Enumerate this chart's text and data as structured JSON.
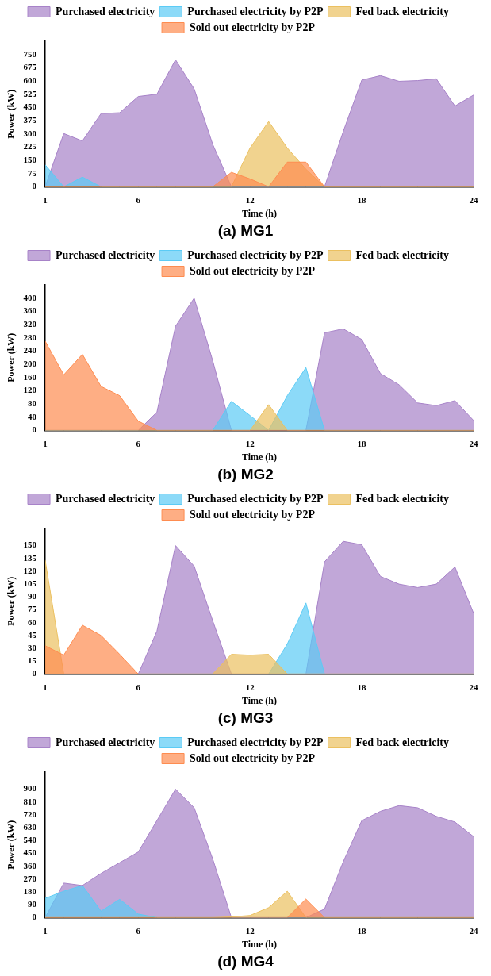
{
  "chart_data": [
    {
      "type": "area",
      "title": "(a) MG1",
      "xlabel": "Time (h)",
      "ylabel": "Power (kW)",
      "x": [
        1,
        2,
        3,
        4,
        5,
        6,
        7,
        8,
        9,
        10,
        11,
        12,
        13,
        14,
        15,
        16,
        17,
        18,
        19,
        20,
        21,
        22,
        23,
        24
      ],
      "xlim": [
        1,
        24
      ],
      "xticks": [
        1,
        6,
        12,
        18,
        24
      ],
      "ylim": [
        0,
        825
      ],
      "yticks": [
        0,
        75,
        150,
        225,
        300,
        375,
        450,
        525,
        600,
        675,
        750
      ],
      "grid": false,
      "legend": "top",
      "marker": "none",
      "series": [
        {
          "name": "Purchased electricity",
          "color": "#a782c8",
          "values": [
            0,
            302,
            260,
            415,
            420,
            512,
            525,
            720,
            555,
            240,
            0,
            0,
            0,
            0,
            0,
            0,
            312,
            605,
            630,
            598,
            602,
            612,
            458,
            520
          ]
        },
        {
          "name": "Purchased electricity by P2P",
          "color": "#5bcbf5",
          "values": [
            125,
            0,
            55,
            0,
            0,
            0,
            0,
            0,
            0,
            0,
            0,
            0,
            0,
            0,
            0,
            0,
            0,
            0,
            0,
            0,
            0,
            0,
            0,
            0
          ]
        },
        {
          "name": "Fed back electricity",
          "color": "#ebc060",
          "values": [
            0,
            0,
            0,
            0,
            0,
            0,
            0,
            0,
            0,
            0,
            0,
            220,
            370,
            220,
            100,
            0,
            0,
            0,
            0,
            0,
            0,
            0,
            0,
            0
          ]
        },
        {
          "name": "Sold out electricity by P2P",
          "color": "#fe8c50",
          "values": [
            0,
            0,
            0,
            0,
            0,
            0,
            0,
            0,
            0,
            0,
            82,
            45,
            0,
            140,
            140,
            0,
            0,
            0,
            0,
            0,
            0,
            0,
            0,
            0
          ]
        }
      ]
    },
    {
      "type": "area",
      "title": "(b) MG2",
      "xlabel": "Time (h)",
      "ylabel": "Power (kW)",
      "x": [
        1,
        2,
        3,
        4,
        5,
        6,
        7,
        8,
        9,
        10,
        11,
        12,
        13,
        14,
        15,
        16,
        17,
        18,
        19,
        20,
        21,
        22,
        23,
        24
      ],
      "xlim": [
        1,
        24
      ],
      "xticks": [
        1,
        6,
        12,
        18,
        24
      ],
      "ylim": [
        0,
        440
      ],
      "yticks": [
        0,
        40,
        80,
        120,
        160,
        200,
        240,
        280,
        320,
        360,
        400
      ],
      "grid": false,
      "legend": "top",
      "marker": "none",
      "series": [
        {
          "name": "Purchased electricity",
          "color": "#a782c8",
          "values": [
            0,
            0,
            0,
            0,
            0,
            0,
            55,
            315,
            400,
            210,
            0,
            0,
            0,
            0,
            0,
            295,
            307,
            275,
            172,
            138,
            83,
            75,
            90,
            30
          ]
        },
        {
          "name": "Purchased electricity by P2P",
          "color": "#5bcbf5",
          "values": [
            0,
            0,
            0,
            0,
            0,
            0,
            0,
            0,
            0,
            0,
            88,
            45,
            0,
            105,
            190,
            0,
            0,
            0,
            0,
            0,
            0,
            0,
            0,
            0
          ]
        },
        {
          "name": "Fed back electricity",
          "color": "#ebc060",
          "values": [
            0,
            0,
            0,
            0,
            0,
            0,
            0,
            0,
            0,
            0,
            0,
            0,
            78,
            0,
            0,
            0,
            0,
            0,
            0,
            0,
            0,
            0,
            0,
            0
          ]
        },
        {
          "name": "Sold out electricity by P2P",
          "color": "#fe8c50",
          "values": [
            270,
            168,
            230,
            133,
            105,
            28,
            0,
            0,
            0,
            0,
            0,
            0,
            0,
            0,
            0,
            0,
            0,
            0,
            0,
            0,
            0,
            0,
            0,
            0
          ]
        }
      ]
    },
    {
      "type": "area",
      "title": "(c) MG3",
      "xlabel": "Time (h)",
      "ylabel": "Power (kW)",
      "x": [
        1,
        2,
        3,
        4,
        5,
        6,
        7,
        8,
        9,
        10,
        11,
        12,
        13,
        14,
        15,
        16,
        17,
        18,
        19,
        20,
        21,
        22,
        23,
        24
      ],
      "xlim": [
        1,
        24
      ],
      "xticks": [
        1,
        6,
        12,
        18,
        24
      ],
      "ylim": [
        0,
        170
      ],
      "yticks": [
        0,
        15,
        30,
        45,
        60,
        75,
        90,
        105,
        120,
        135,
        150
      ],
      "grid": false,
      "legend": "top",
      "marker": "none",
      "series": [
        {
          "name": "Purchased electricity",
          "color": "#a782c8",
          "values": [
            0,
            0,
            0,
            0,
            0,
            0,
            50,
            150,
            126,
            62,
            0,
            0,
            0,
            0,
            0,
            131,
            155,
            151,
            114,
            105,
            101,
            105,
            125,
            71
          ]
        },
        {
          "name": "Purchased electricity by P2P",
          "color": "#5bcbf5",
          "values": [
            0,
            0,
            0,
            0,
            0,
            0,
            0,
            0,
            0,
            0,
            0,
            0,
            0,
            35,
            83,
            0,
            0,
            0,
            0,
            0,
            0,
            0,
            0,
            0
          ]
        },
        {
          "name": "Fed back electricity",
          "color": "#ebc060",
          "values": [
            133,
            0,
            0,
            0,
            0,
            0,
            0,
            0,
            0,
            0,
            23,
            22,
            23,
            0,
            0,
            0,
            0,
            0,
            0,
            0,
            0,
            0,
            0,
            0
          ]
        },
        {
          "name": "Sold out electricity by P2P",
          "color": "#fe8c50",
          "values": [
            33,
            22,
            57,
            45,
            23,
            0,
            0,
            0,
            0,
            0,
            0,
            0,
            0,
            0,
            0,
            0,
            0,
            0,
            0,
            0,
            0,
            0,
            0,
            0
          ]
        }
      ]
    },
    {
      "type": "area",
      "title": "(d) MG4",
      "xlabel": "Time (h)",
      "ylabel": "Power (kW)",
      "x": [
        1,
        2,
        3,
        4,
        5,
        6,
        7,
        8,
        9,
        10,
        11,
        12,
        13,
        14,
        15,
        16,
        17,
        18,
        19,
        20,
        21,
        22,
        23,
        24
      ],
      "xlim": [
        1,
        24
      ],
      "xticks": [
        1,
        6,
        12,
        18,
        24
      ],
      "ylim": [
        0,
        1020
      ],
      "yticks": [
        0,
        90,
        180,
        270,
        360,
        450,
        540,
        630,
        720,
        810,
        900
      ],
      "grid": false,
      "legend": "top",
      "marker": "none",
      "series": [
        {
          "name": "Purchased electricity",
          "color": "#a782c8",
          "values": [
            0,
            242,
            225,
            310,
            385,
            460,
            680,
            900,
            770,
            410,
            0,
            0,
            0,
            0,
            0,
            60,
            390,
            680,
            745,
            785,
            770,
            710,
            670,
            568
          ]
        },
        {
          "name": "Purchased electricity by P2P",
          "color": "#5bcbf5",
          "values": [
            135,
            185,
            225,
            45,
            128,
            25,
            0,
            0,
            0,
            0,
            0,
            0,
            0,
            0,
            0,
            0,
            0,
            0,
            0,
            0,
            0,
            0,
            0,
            0
          ]
        },
        {
          "name": "Fed back electricity",
          "color": "#ebc060",
          "values": [
            0,
            0,
            0,
            0,
            0,
            0,
            0,
            0,
            0,
            0,
            5,
            15,
            70,
            185,
            0,
            0,
            0,
            0,
            0,
            0,
            0,
            0,
            0,
            0
          ]
        },
        {
          "name": "Sold out electricity by P2P",
          "color": "#fe8c50",
          "values": [
            0,
            0,
            0,
            0,
            0,
            0,
            0,
            0,
            0,
            0,
            0,
            0,
            0,
            0,
            130,
            0,
            0,
            0,
            0,
            0,
            0,
            0,
            0,
            0
          ]
        }
      ]
    }
  ]
}
